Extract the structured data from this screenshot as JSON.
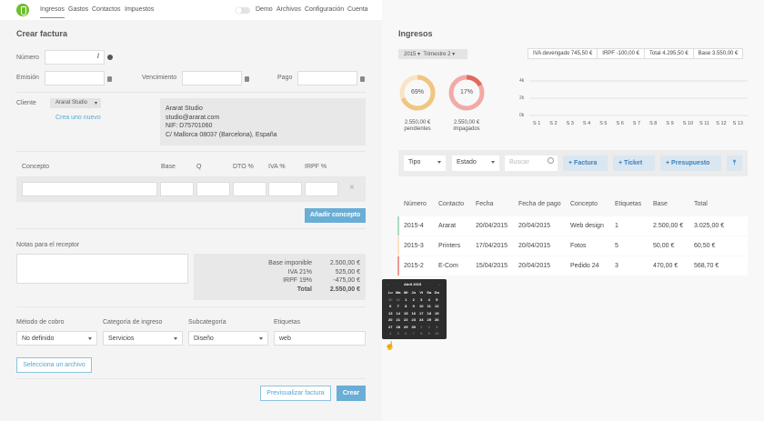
{
  "nav": {
    "items": [
      "Ingresos",
      "Gastos",
      "Contactos",
      "Impuestos"
    ],
    "right": [
      "Demo",
      "Archivos",
      "Configuración",
      "Cuenta"
    ]
  },
  "form": {
    "title": "Crear factura",
    "numero": "Número",
    "numero_sep": "/",
    "emision": "Emisión",
    "vencimiento": "Vencimiento",
    "pago": "Pago",
    "cliente": "Cliente",
    "cliente_value": "Ararat Studio",
    "crear_nuevo": "Crea uno nuevo",
    "client_info": [
      "Ararat Studio",
      "studio@ararat.com",
      "NIF: D75701060",
      "C/ Mallorca 08037 (Barcelona), España"
    ],
    "columns": [
      "Concepto",
      "Base",
      "Q",
      "DTO %",
      "IVA %",
      "IRPF %"
    ],
    "add_concept": "Añadir concepto",
    "notes": "Notas para el receptor",
    "totals": [
      [
        "Base imponible",
        "2.500,00 €"
      ],
      [
        "IVA 21%",
        "525,00 €"
      ],
      [
        "IRPF 19%",
        "-475,00 €"
      ],
      [
        "Total",
        "2.550,00 €"
      ]
    ],
    "metodo": "Método de cobro",
    "metodo_value": "No definido",
    "categoria": "Categoría de ingreso",
    "categoria_value": "Servicios",
    "subcategoria": "Subcategoría",
    "subcategoria_value": "Diseño",
    "etiquetas": "Etiquetas",
    "etiquetas_value": "web",
    "file": "Selecciona un archivo",
    "preview": "Previsualizar factura",
    "create": "Crear"
  },
  "ingresos": {
    "title": "Ingresos",
    "year": "2015",
    "quarter": "Trimestre 2",
    "stats": [
      "IVA devengado 745,50 €",
      "IRPF -100,00 €",
      "Total 4.295,50 €",
      "Base 3.550,00 €"
    ],
    "donuts": [
      {
        "pct": "69%",
        "value": 69,
        "amount": "2.550,00 €",
        "label": "pendientes",
        "color": "#f0c680",
        "track": "#f8e4c6"
      },
      {
        "pct": "17%",
        "value": 17,
        "amount": "2.550,00 €",
        "label": "impagados",
        "color": "#e06a5e",
        "track": "#f2aaa6"
      }
    ],
    "chart": {
      "yticks": [
        "4k",
        "2k",
        "0k"
      ],
      "xticks": [
        "S 1",
        "S 2",
        "S 3",
        "S 4",
        "S 5",
        "S 6",
        "S 7",
        "S 8",
        "S 9",
        "S 10",
        "S 11",
        "S 12",
        "S 13"
      ]
    },
    "filters": {
      "tipo": "Tipo",
      "estado": "Estado",
      "search_placeholder": "Buscar",
      "factura": "Factura",
      "ticket": "Ticket",
      "presupuesto": "Presupuesto"
    },
    "table": {
      "headers": [
        "Número",
        "Contacto",
        "Fecha",
        "Fecha de pago",
        "Concepto",
        "Etiquetas",
        "Base",
        "Total"
      ],
      "rows": [
        {
          "cells": [
            "2015-4",
            "Ararat",
            "20/04/2015",
            "20/04/2015",
            "Web design",
            "1",
            "2.500,00 €",
            "3.025,00 €"
          ],
          "color": "#a8dcc0"
        },
        {
          "cells": [
            "2015-3",
            "Printers",
            "17/04/2015",
            "20/04/2015",
            "Fotos",
            "5",
            "50,00 €",
            "60,50 €"
          ],
          "color": "#fbe2c0"
        },
        {
          "cells": [
            "2015-2",
            "E-Com",
            "15/04/2015",
            "20/04/2015",
            "Pedido 24",
            "3",
            "470,00 €",
            "568,70 €"
          ],
          "color": "#ee9a92"
        }
      ]
    }
  },
  "calendar": {
    "month": "Abril 2015",
    "days": [
      "Lu",
      "Ma",
      "Mi",
      "Ju",
      "Vi",
      "Sa",
      "Do"
    ],
    "weeks": [
      [
        "30",
        "31",
        "1",
        "2",
        "3",
        "4",
        "5"
      ],
      [
        "6",
        "7",
        "8",
        "9",
        "10",
        "11",
        "12"
      ],
      [
        "13",
        "14",
        "15",
        "16",
        "17",
        "18",
        "19"
      ],
      [
        "20",
        "21",
        "22",
        "23",
        "24",
        "25",
        "26"
      ],
      [
        "27",
        "28",
        "29",
        "30",
        "1",
        "2",
        "3"
      ],
      [
        "4",
        "5",
        "6",
        "7",
        "8",
        "9",
        "10"
      ]
    ]
  }
}
